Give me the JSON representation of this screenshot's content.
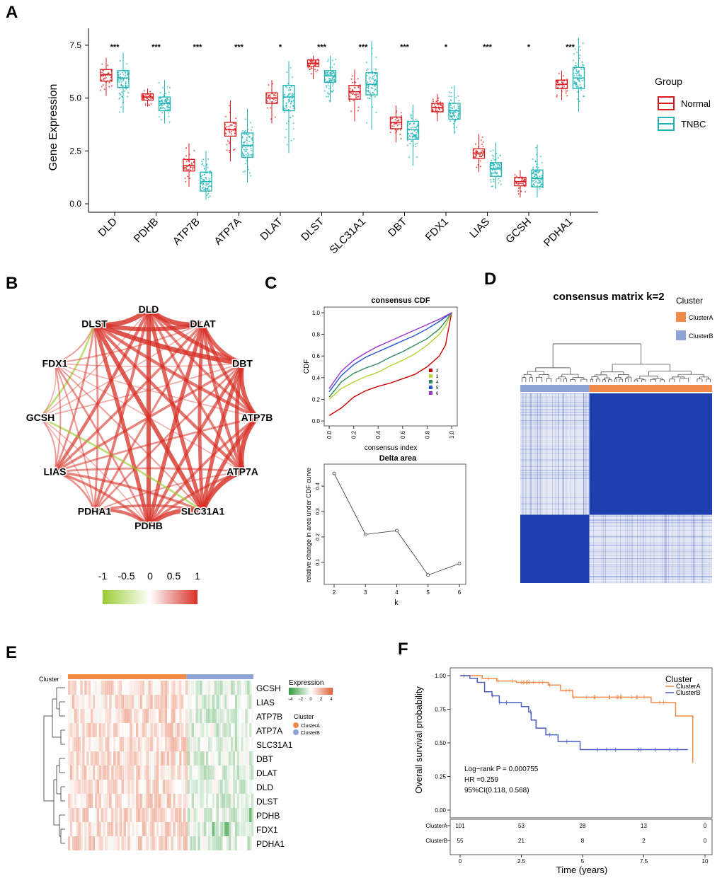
{
  "panel_labels": [
    "A",
    "B",
    "C",
    "D",
    "E",
    "F"
  ],
  "chart_data": [
    {
      "id": "A",
      "type": "box",
      "ylabel": "Gene Expression",
      "yticks": [
        "0.0",
        "2.5",
        "5.0",
        "7.5"
      ],
      "ylim": [
        -0.4,
        8.3
      ],
      "categories": [
        "DLD",
        "PDHB",
        "ATP7B",
        "ATP7A",
        "DLAT",
        "DLST",
        "SLC31A1",
        "DBT",
        "FDX1",
        "LIAS",
        "GCSH",
        "PDHA1"
      ],
      "significance": [
        "***",
        "***",
        "***",
        "***",
        "*",
        "***",
        "***",
        "***",
        "*",
        "***",
        "*",
        "***"
      ],
      "legend": {
        "title": "Group",
        "items": [
          {
            "name": "Normal",
            "color": "#d7191c"
          },
          {
            "name": "TNBC",
            "color": "#1fb4b4"
          }
        ]
      },
      "series": [
        {
          "name": "Normal",
          "color": "#d7191c",
          "boxes": [
            [
              5.1,
              5.8,
              6.1,
              6.35,
              6.9
            ],
            [
              4.6,
              4.9,
              5.05,
              5.2,
              5.45
            ],
            [
              0.8,
              1.55,
              1.8,
              2.1,
              2.85
            ],
            [
              2.0,
              3.2,
              3.5,
              3.85,
              4.9
            ],
            [
              3.8,
              4.75,
              5.0,
              5.25,
              5.85
            ],
            [
              5.9,
              6.5,
              6.65,
              6.8,
              7.0
            ],
            [
              3.9,
              4.95,
              5.3,
              5.6,
              6.35
            ],
            [
              2.9,
              3.55,
              3.85,
              4.1,
              4.65
            ],
            [
              3.9,
              4.35,
              4.55,
              4.75,
              5.2
            ],
            [
              1.5,
              2.15,
              2.4,
              2.6,
              3.3
            ],
            [
              0.3,
              0.85,
              1.05,
              1.25,
              1.6
            ],
            [
              4.9,
              5.45,
              5.65,
              5.85,
              6.3
            ]
          ]
        },
        {
          "name": "TNBC",
          "color": "#1fb4b4",
          "boxes": [
            [
              4.3,
              5.5,
              5.95,
              6.3,
              7.15
            ],
            [
              3.8,
              4.4,
              4.75,
              5.05,
              5.85
            ],
            [
              0.2,
              0.6,
              1.05,
              1.5,
              2.5
            ],
            [
              1.0,
              2.2,
              2.75,
              3.35,
              4.5
            ],
            [
              2.4,
              4.4,
              5.05,
              5.6,
              6.75
            ],
            [
              4.8,
              5.75,
              6.05,
              6.3,
              7.0
            ],
            [
              3.5,
              5.15,
              5.65,
              6.2,
              7.7
            ],
            [
              1.8,
              3.05,
              3.5,
              3.9,
              4.7
            ],
            [
              3.3,
              4.0,
              4.4,
              4.75,
              5.6
            ],
            [
              0.7,
              1.3,
              1.65,
              1.95,
              2.9
            ],
            [
              0.3,
              0.8,
              1.2,
              1.6,
              2.8
            ],
            [
              4.35,
              5.45,
              5.95,
              6.45,
              7.85
            ]
          ]
        }
      ]
    },
    {
      "id": "B",
      "type": "network",
      "nodes": [
        "DLD",
        "DLAT",
        "DBT",
        "ATP7B",
        "ATP7A",
        "SLC31A1",
        "PDHB",
        "PDHA1",
        "LIAS",
        "GCSH",
        "FDX1",
        "DLST"
      ],
      "node_angles_deg": [
        90,
        60,
        30,
        0,
        -30,
        -60,
        -90,
        -120,
        -150,
        180,
        150,
        120
      ],
      "edges": [
        [
          "DLD",
          "DLST",
          0.9
        ],
        [
          "DLD",
          "DLAT",
          0.9
        ],
        [
          "DLD",
          "DBT",
          0.8
        ],
        [
          "DLD",
          "PDHB",
          0.85
        ],
        [
          "DLD",
          "SLC31A1",
          0.8
        ],
        [
          "DLD",
          "LIAS",
          0.7
        ],
        [
          "DLD",
          "PDHA1",
          0.65
        ],
        [
          "DLD",
          "ATP7A",
          0.6
        ],
        [
          "DLD",
          "ATP7B",
          0.6
        ],
        [
          "DLD",
          "GCSH",
          0.3
        ],
        [
          "DLST",
          "DLAT",
          0.85
        ],
        [
          "DLST",
          "DBT",
          0.9
        ],
        [
          "DLST",
          "SLC31A1",
          0.85
        ],
        [
          "DLST",
          "PDHB",
          0.8
        ],
        [
          "DLST",
          "ATP7A",
          0.7
        ],
        [
          "DLST",
          "ATP7B",
          0.7
        ],
        [
          "DLST",
          "PDHA1",
          0.5
        ],
        [
          "DLST",
          "LIAS",
          0.5
        ],
        [
          "DLST",
          "FDX1",
          0.4
        ],
        [
          "DLST",
          "GCSH",
          -0.5
        ],
        [
          "DLAT",
          "DBT",
          0.8
        ],
        [
          "DLAT",
          "ATP7B",
          0.75
        ],
        [
          "DLAT",
          "ATP7A",
          0.7
        ],
        [
          "DLAT",
          "SLC31A1",
          0.75
        ],
        [
          "DLAT",
          "PDHB",
          0.8
        ],
        [
          "DLAT",
          "LIAS",
          0.6
        ],
        [
          "DLAT",
          "PDHA1",
          0.55
        ],
        [
          "DLAT",
          "FDX1",
          0.4
        ],
        [
          "DLAT",
          "GCSH",
          0.3
        ],
        [
          "DBT",
          "ATP7B",
          0.85
        ],
        [
          "DBT",
          "ATP7A",
          0.8
        ],
        [
          "DBT",
          "SLC31A1",
          0.8
        ],
        [
          "DBT",
          "PDHB",
          0.7
        ],
        [
          "DBT",
          "LIAS",
          0.6
        ],
        [
          "DBT",
          "PDHA1",
          0.5
        ],
        [
          "DBT",
          "FDX1",
          0.3
        ],
        [
          "DBT",
          "GCSH",
          0.35
        ],
        [
          "ATP7B",
          "ATP7A",
          0.9
        ],
        [
          "ATP7B",
          "SLC31A1",
          0.8
        ],
        [
          "ATP7B",
          "PDHB",
          0.6
        ],
        [
          "ATP7B",
          "LIAS",
          0.5
        ],
        [
          "ATP7B",
          "FDX1",
          0.3
        ],
        [
          "ATP7A",
          "SLC31A1",
          0.9
        ],
        [
          "ATP7A",
          "PDHB",
          0.6
        ],
        [
          "ATP7A",
          "LIAS",
          0.5
        ],
        [
          "ATP7A",
          "PDHA1",
          0.4
        ],
        [
          "ATP7A",
          "FDX1",
          0.3
        ],
        [
          "SLC31A1",
          "PDHB",
          0.85
        ],
        [
          "SLC31A1",
          "PDHA1",
          0.6
        ],
        [
          "SLC31A1",
          "LIAS",
          0.6
        ],
        [
          "SLC31A1",
          "FDX1",
          0.4
        ],
        [
          "SLC31A1",
          "GCSH",
          -0.5
        ],
        [
          "PDHB",
          "PDHA1",
          0.7
        ],
        [
          "PDHB",
          "LIAS",
          0.6
        ],
        [
          "PDHB",
          "FDX1",
          0.5
        ],
        [
          "PDHB",
          "GCSH",
          0.3
        ],
        [
          "PDHA1",
          "LIAS",
          0.5
        ],
        [
          "PDHA1",
          "FDX1",
          0.4
        ],
        [
          "PDHA1",
          "GCSH",
          0.3
        ],
        [
          "LIAS",
          "GCSH",
          0.4
        ],
        [
          "LIAS",
          "FDX1",
          0.4
        ],
        [
          "GCSH",
          "FDX1",
          0.3
        ]
      ],
      "colorbar": {
        "ticks": [
          "-1",
          "-0.5",
          "0",
          "0.5",
          "1"
        ],
        "low": "#9acd32",
        "mid": "#ffffff",
        "high": "#d73027"
      }
    },
    {
      "id": "C1",
      "type": "line",
      "title": "consensus CDF",
      "xlabel": "consensus index",
      "ylabel": "CDF",
      "xticks": [
        "0.0",
        "0.2",
        "0.4",
        "0.6",
        "0.8",
        "1.0"
      ],
      "yticks": [
        "0.0",
        "0.2",
        "0.4",
        "0.6",
        "0.8",
        "1.0"
      ],
      "x": [
        0,
        0.1,
        0.2,
        0.3,
        0.4,
        0.5,
        0.6,
        0.7,
        0.8,
        0.9,
        0.95,
        1.0
      ],
      "series": [
        {
          "name": "2",
          "color": "#cc0000",
          "values": [
            0.05,
            0.12,
            0.22,
            0.28,
            0.32,
            0.35,
            0.39,
            0.43,
            0.5,
            0.6,
            0.7,
            1.0
          ]
        },
        {
          "name": "3",
          "color": "#b5d334",
          "values": [
            0.2,
            0.3,
            0.36,
            0.41,
            0.45,
            0.51,
            0.56,
            0.62,
            0.7,
            0.8,
            0.88,
            1.0
          ]
        },
        {
          "name": "4",
          "color": "#2e8b57",
          "values": [
            0.22,
            0.36,
            0.44,
            0.49,
            0.53,
            0.59,
            0.64,
            0.7,
            0.76,
            0.85,
            0.92,
            1.0
          ]
        },
        {
          "name": "5",
          "color": "#2255cc",
          "values": [
            0.27,
            0.42,
            0.52,
            0.59,
            0.64,
            0.69,
            0.74,
            0.79,
            0.85,
            0.92,
            0.96,
            1.0
          ]
        },
        {
          "name": "6",
          "color": "#9933cc",
          "values": [
            0.3,
            0.46,
            0.56,
            0.63,
            0.69,
            0.74,
            0.79,
            0.84,
            0.89,
            0.94,
            0.97,
            1.0
          ]
        }
      ]
    },
    {
      "id": "C2",
      "type": "line",
      "title": "Delta area",
      "xlabel": "k",
      "ylabel": "relative change in area under CDF curve",
      "x": [
        2,
        3,
        4,
        5,
        6
      ],
      "values": [
        0.45,
        0.21,
        0.225,
        0.05,
        0.095
      ],
      "xticks": [
        "2",
        "3",
        "4",
        "5",
        "6"
      ],
      "yticks": [
        "0.1",
        "0.2",
        "0.3",
        "0.4"
      ],
      "ylim": [
        0.03,
        0.47
      ]
    },
    {
      "id": "D",
      "type": "heatmap",
      "title": "consensus matrix k=2",
      "legend": {
        "title": "Cluster",
        "items": [
          {
            "name": "ClusterA",
            "color": "#f28a4c"
          },
          {
            "name": "ClusterB",
            "color": "#8ea3d8"
          }
        ]
      },
      "clusters": [
        {
          "name": "ClusterB",
          "fraction": 0.36
        },
        {
          "name": "ClusterA",
          "fraction": 0.64
        }
      ],
      "fill_color": "#1f3faf"
    },
    {
      "id": "E",
      "type": "heatmap",
      "row_label_title": "Cluster",
      "genes": [
        "GCSH",
        "LIAS",
        "ATP7B",
        "ATP7A",
        "SLC31A1",
        "DBT",
        "DLAT",
        "DLD",
        "DLST",
        "PDHB",
        "FDX1",
        "PDHA1"
      ],
      "legend_expression": {
        "title": "Expression",
        "ticks": [
          "−4",
          "−2",
          "0",
          "2",
          "4"
        ]
      },
      "legend_cluster": {
        "title": "Cluster",
        "items": [
          {
            "name": "ClusterA",
            "color": "#f28a4c"
          },
          {
            "name": "ClusterB",
            "color": "#8ea3d8"
          }
        ]
      },
      "clusters": [
        {
          "name": "ClusterA",
          "fraction": 0.64
        },
        {
          "name": "ClusterB",
          "fraction": 0.36
        }
      ]
    },
    {
      "id": "F",
      "type": "survival",
      "ylabel": "Overall survival probability",
      "xlabel": "Time (years)",
      "xticks": [
        "0",
        "2.5",
        "5",
        "7.5",
        "10"
      ],
      "yticks": [
        "0.00",
        "0.25",
        "0.50",
        "0.75",
        "1.00"
      ],
      "legend": {
        "title": "Cluster",
        "items": [
          {
            "name": "ClusterA",
            "color": "#f28a4c"
          },
          {
            "name": "ClusterB",
            "color": "#4a5fc1"
          }
        ]
      },
      "series": [
        {
          "name": "ClusterA",
          "color": "#f28a4c",
          "steps": [
            [
              0,
              1.0
            ],
            [
              0.9,
              0.98
            ],
            [
              1.5,
              0.96
            ],
            [
              2.3,
              0.95
            ],
            [
              3.6,
              0.93
            ],
            [
              4.1,
              0.89
            ],
            [
              4.6,
              0.84
            ],
            [
              7.8,
              0.8
            ],
            [
              8.8,
              0.7
            ],
            [
              9.5,
              0.35
            ]
          ]
        },
        {
          "name": "ClusterB",
          "color": "#4a5fc1",
          "steps": [
            [
              0,
              1.0
            ],
            [
              0.4,
              0.98
            ],
            [
              0.7,
              0.95
            ],
            [
              1.0,
              0.88
            ],
            [
              1.3,
              0.85
            ],
            [
              1.6,
              0.8
            ],
            [
              2.5,
              0.77
            ],
            [
              2.8,
              0.73
            ],
            [
              2.9,
              0.67
            ],
            [
              3.1,
              0.61
            ],
            [
              3.5,
              0.56
            ],
            [
              4.0,
              0.51
            ],
            [
              4.9,
              0.45
            ],
            [
              9.3,
              0.45
            ]
          ]
        }
      ],
      "annotations": [
        "Log−rank P = 0.000755",
        "HR =0.259",
        "95%CI(0.118, 0.568)"
      ],
      "risk_table": {
        "rows": [
          {
            "name": "ClusterA",
            "values": [
              "101",
              "53",
              "28",
              "13",
              "0"
            ]
          },
          {
            "name": "ClusterB",
            "values": [
              "55",
              "21",
              "8",
              "2",
              "0"
            ]
          }
        ]
      }
    }
  ]
}
